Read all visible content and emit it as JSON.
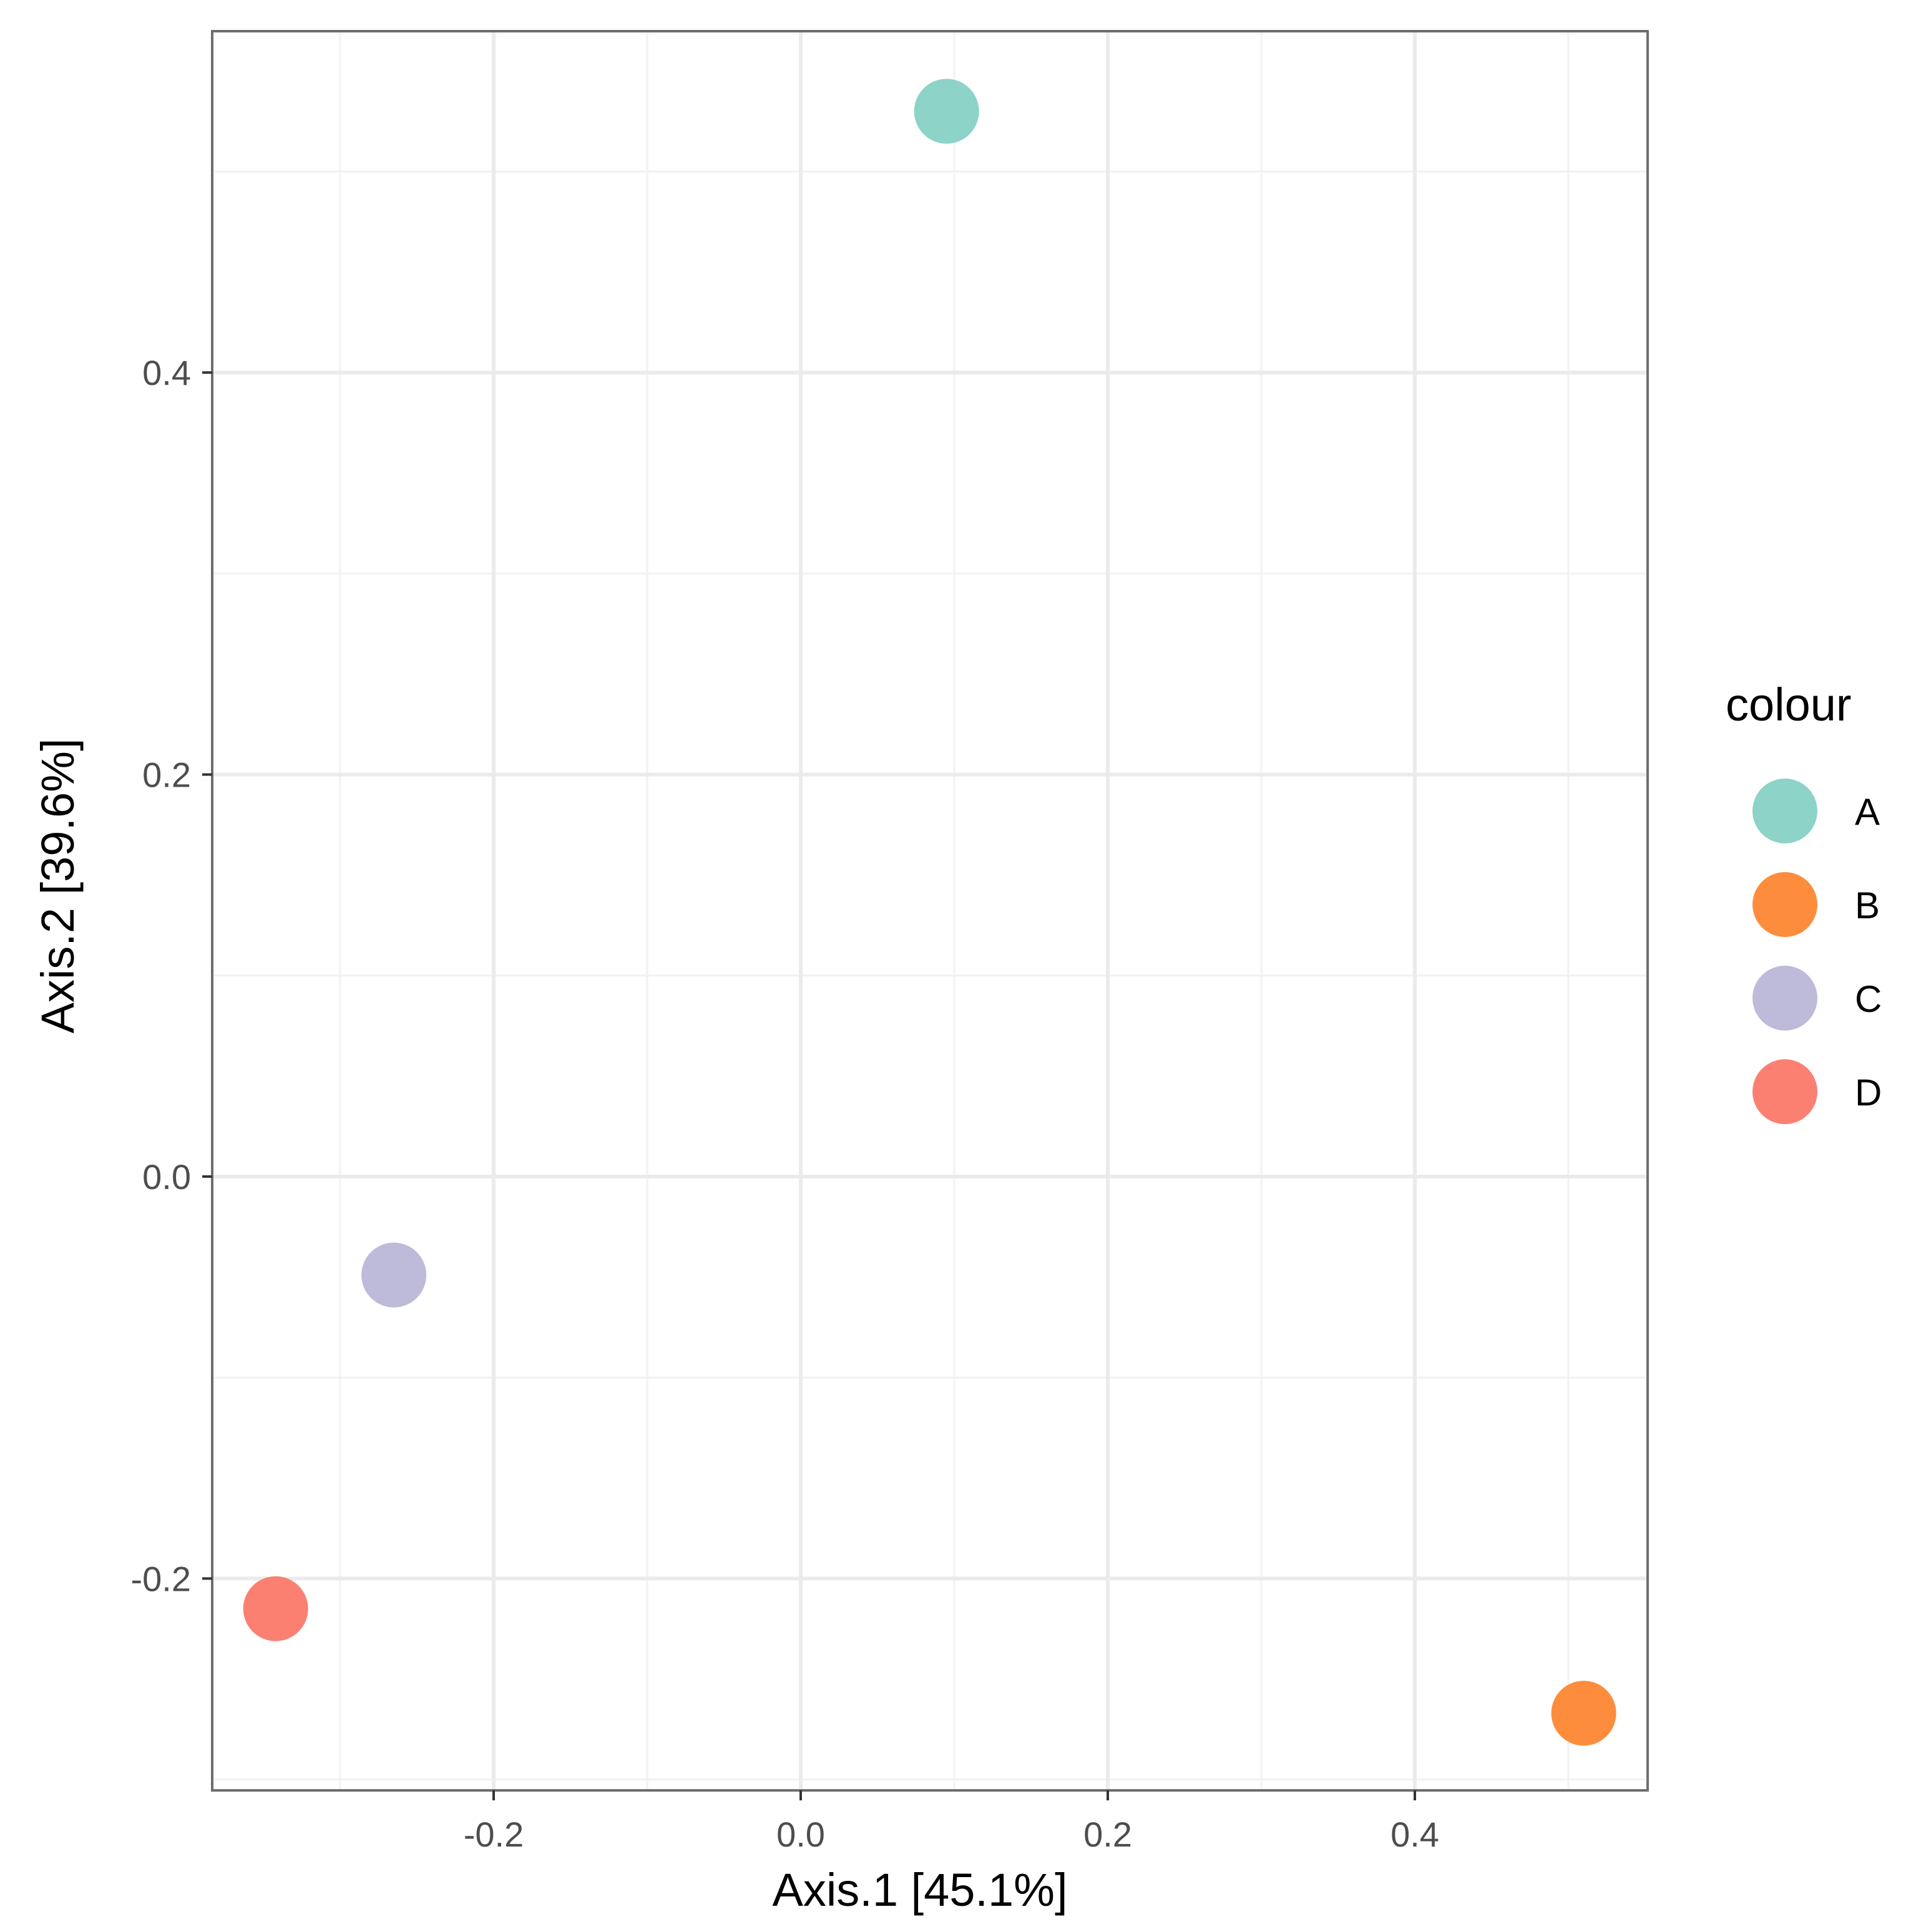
{
  "chart_data": {
    "type": "scatter",
    "xlabel": "Axis.1   [45.1%]",
    "ylabel": "Axis.2   [39.6%]",
    "xlim": [
      -0.3,
      0.5
    ],
    "ylim": [
      -0.3,
      0.5
    ],
    "x_ticks": [
      -0.2,
      0.0,
      0.2,
      0.4
    ],
    "y_ticks": [
      -0.2,
      0.0,
      0.2,
      0.4
    ],
    "x_tick_labels": [
      "-0.2",
      "0.0",
      "0.2",
      "0.4"
    ],
    "y_tick_labels": [
      "-0.2",
      "0.0",
      "0.2",
      "0.4"
    ],
    "grid": true,
    "legend": {
      "title": "colour",
      "position": "right",
      "entries": [
        {
          "label": "A",
          "color": "#8dd3c7"
        },
        {
          "label": "B",
          "color": "#fd8d3c"
        },
        {
          "label": "C",
          "color": "#bebada"
        },
        {
          "label": "D",
          "color": "#fb8072"
        }
      ]
    },
    "points": [
      {
        "label": "A",
        "x": 0.095,
        "y": 0.53,
        "color": "#8dd3c7"
      },
      {
        "label": "B",
        "x": 0.51,
        "y": -0.267,
        "color": "#fd8d3c"
      },
      {
        "label": "C",
        "x": -0.265,
        "y": -0.049,
        "color": "#bebada"
      },
      {
        "label": "D",
        "x": -0.342,
        "y": -0.215,
        "color": "#fb8072"
      }
    ]
  }
}
